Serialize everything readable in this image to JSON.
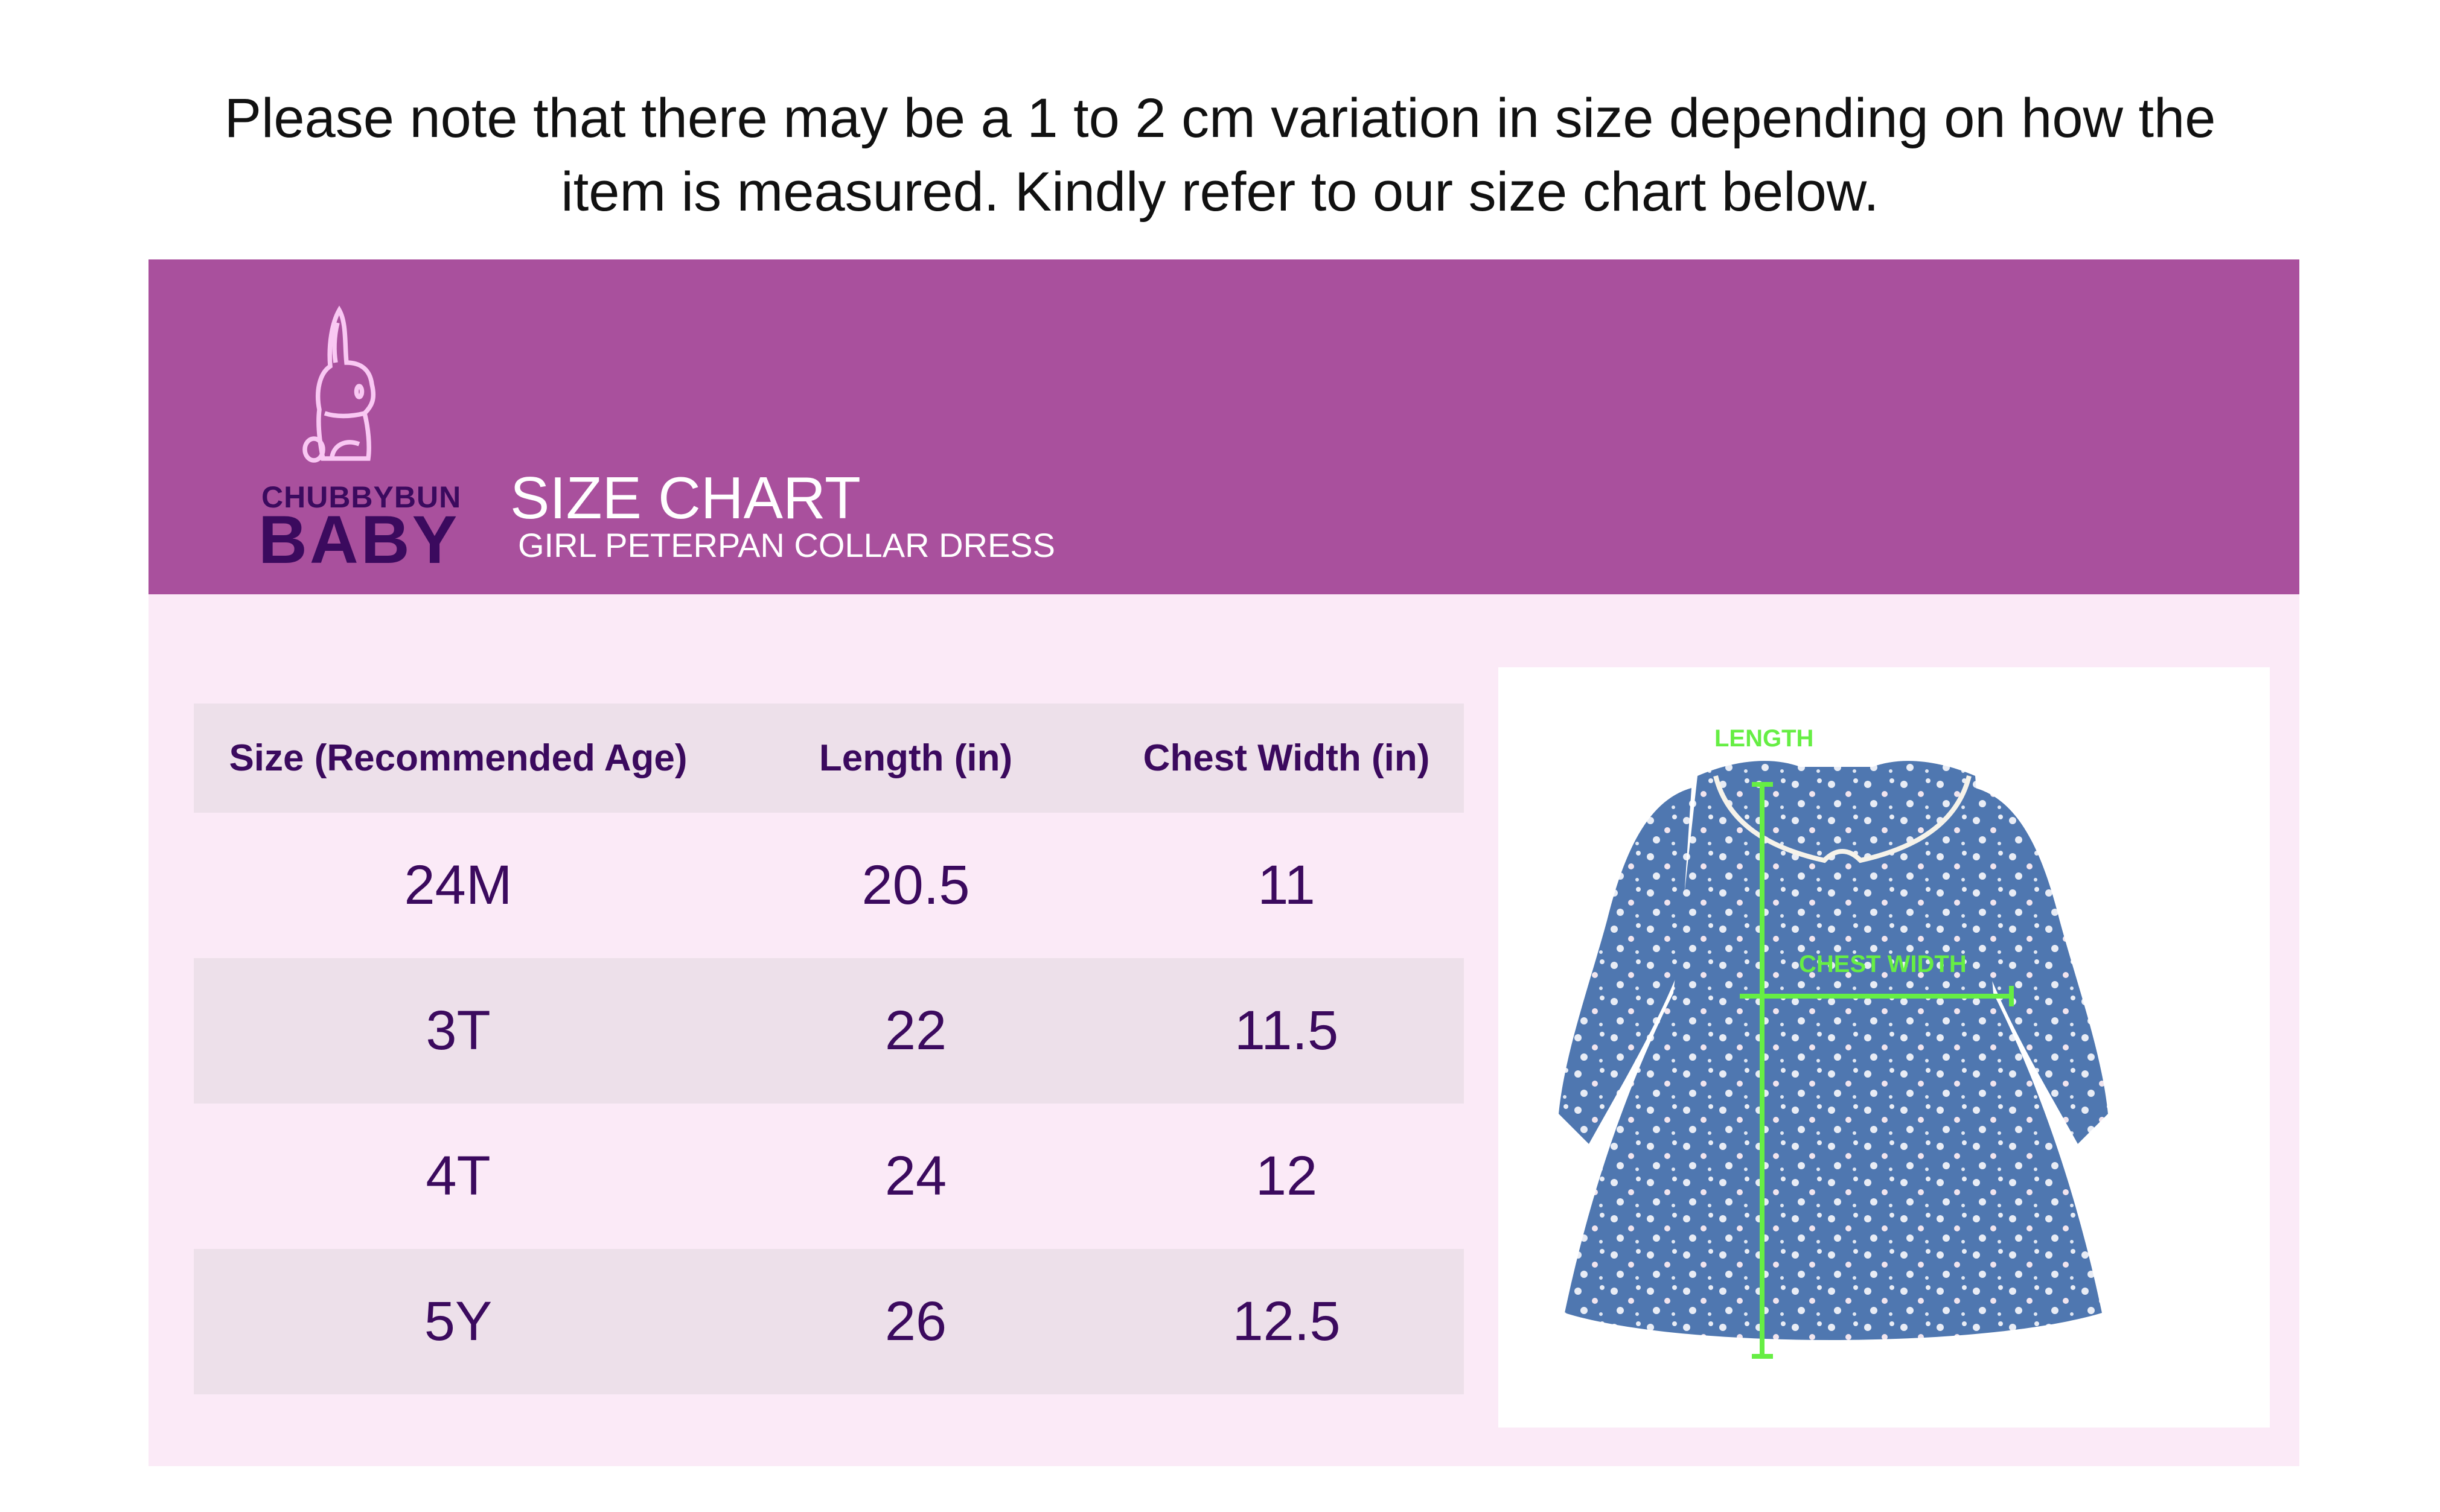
{
  "note": {
    "line1": "Please note that there may be a 1 to 2 cm variation in size depending on how the",
    "line2": "item is measured. Kindly refer to our size chart below."
  },
  "brand": {
    "line1": "CHUBBYBUN",
    "line2": "BABY",
    "logo_icon": "bunny-icon"
  },
  "header": {
    "title": "SIZE CHART",
    "subtitle": "GIRL PETERPAN COLLAR DRESS"
  },
  "colors": {
    "banner": "#a9509d",
    "panel": "#fbeaf7",
    "text": "#3b0a5e",
    "row_shade": "#ede0ea",
    "measure": "#66ee44"
  },
  "table": {
    "columns": [
      "Size (Recommended Age)",
      "Length (in)",
      "Chest Width (in)"
    ],
    "rows": [
      [
        "24M",
        "20.5",
        "11"
      ],
      [
        "3T",
        "22",
        "11.5"
      ],
      [
        "4T",
        "24",
        "12"
      ],
      [
        "5Y",
        "26",
        "12.5"
      ]
    ]
  },
  "image": {
    "length_label": "LENGTH",
    "chest_label": "CHEST WIDTH"
  }
}
